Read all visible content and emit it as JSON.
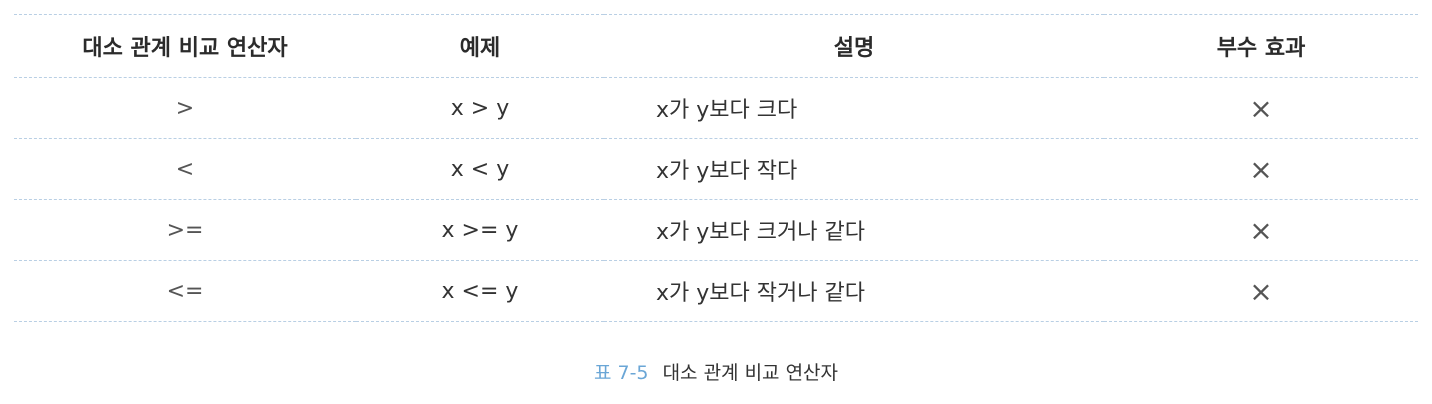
{
  "table": {
    "headers": [
      "대소 관계 비교 연산자",
      "예제",
      "설명",
      "부수 효과"
    ],
    "rows": [
      {
        "operator": ">",
        "example": "x > y",
        "description": "x가 y보다 크다",
        "side_effect": "×"
      },
      {
        "operator": "<",
        "example": "x < y",
        "description": "x가 y보다 작다",
        "side_effect": "×"
      },
      {
        "operator": ">=",
        "example": "x >= y",
        "description": "x가 y보다 크거나 같다",
        "side_effect": "×"
      },
      {
        "operator": "<=",
        "example": "x <= y",
        "description": "x가 y보다 작거나 같다",
        "side_effect": "×"
      }
    ]
  },
  "caption": {
    "label": "표",
    "number": "7-5",
    "text": "대소 관계 비교 연산자"
  },
  "colors": {
    "caption_accent": "#6aa6d6",
    "rule_line": "#b9cfe4"
  }
}
